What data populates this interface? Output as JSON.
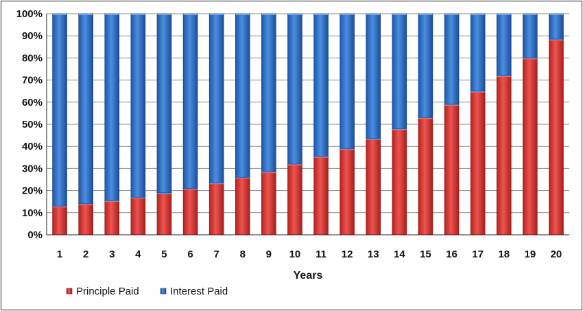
{
  "chart_data": {
    "type": "bar",
    "stacked": true,
    "percent_stacked": true,
    "xlabel": "Years",
    "ylabel": "",
    "ylim": [
      0,
      100
    ],
    "yticks": [
      "0%",
      "10%",
      "20%",
      "30%",
      "40%",
      "50%",
      "60%",
      "70%",
      "80%",
      "90%",
      "100%"
    ],
    "categories": [
      "1",
      "2",
      "3",
      "4",
      "5",
      "6",
      "7",
      "8",
      "9",
      "10",
      "11",
      "12",
      "13",
      "14",
      "15",
      "16",
      "17",
      "18",
      "19",
      "20"
    ],
    "series": [
      {
        "name": "Principle Paid",
        "color": "#d93a35",
        "values": [
          13,
          14,
          15.5,
          17,
          19,
          21,
          23.5,
          26,
          28.5,
          32,
          35.5,
          39,
          43.5,
          48,
          53,
          59,
          65,
          72,
          80,
          88.5
        ]
      },
      {
        "name": "Interest Paid",
        "color": "#2f6fc7",
        "values": [
          87,
          86,
          84.5,
          83,
          81,
          79,
          76.5,
          74,
          71.5,
          68,
          64.5,
          61,
          56.5,
          52,
          47,
          41,
          35,
          28,
          20,
          11.5
        ]
      }
    ],
    "grid": true,
    "legend_position": "bottom-left"
  }
}
